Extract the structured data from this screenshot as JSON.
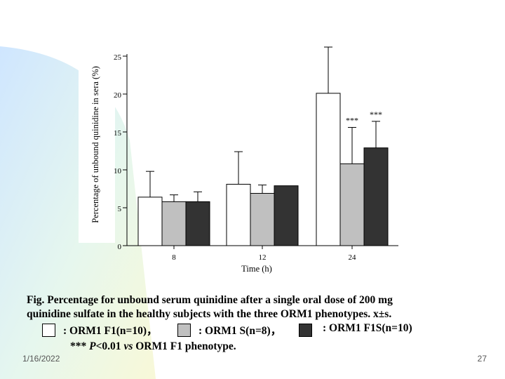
{
  "slide": {
    "date": "1/16/2022",
    "page_number": "27"
  },
  "caption": {
    "line1": "Fig.   Percentage for unbound serum quinidine after a single oral dose of 200 mg",
    "line2": "quinidine sulfate in the healthy subjects  with the three ORM1 phenotypes.   x±s.",
    "footnote_prefix": "*** ",
    "footnote_p": "P",
    "footnote_mid": "<0.01 ",
    "footnote_vs": "vs",
    "footnote_suffix": " ORM1 F1 phenotype."
  },
  "legend": [
    {
      "label": ": ORM1 F1(n=10)，",
      "color": "#ffffff"
    },
    {
      "label": ": ORM1 S(n=8)，",
      "color": "#c0c0c0"
    },
    {
      "label": ": ORM1 F1S(n=10)",
      "color": "#333333"
    }
  ],
  "chart_data": {
    "type": "bar",
    "title": "",
    "xlabel": "Time (h)",
    "ylabel": "Percentage of unbound quinidine in sera (%)",
    "ylim": [
      0,
      25
    ],
    "yticks": [
      "0",
      "5",
      "10",
      "15",
      "20",
      "25"
    ],
    "categories": [
      "8",
      "12",
      "24"
    ],
    "series": [
      {
        "name": "ORM1 F1(n=10)",
        "color": "#ffffff",
        "values": [
          6.4,
          8.1,
          20.1
        ],
        "errors": [
          3.4,
          4.3,
          6.1
        ]
      },
      {
        "name": "ORM1 S(n=8)",
        "color": "#c0c0c0",
        "values": [
          5.8,
          6.9,
          10.8
        ],
        "errors": [
          0.9,
          1.1,
          4.8
        ]
      },
      {
        "name": "ORM1 F1S(n=10)",
        "color": "#333333",
        "values": [
          5.8,
          7.9,
          12.9
        ],
        "errors": [
          1.3,
          0.0,
          3.5
        ]
      }
    ],
    "annotations": [
      {
        "category": "24",
        "series": "ORM1 S(n=8)",
        "text": "***"
      },
      {
        "category": "24",
        "series": "ORM1 F1S(n=10)",
        "text": "***"
      }
    ]
  }
}
